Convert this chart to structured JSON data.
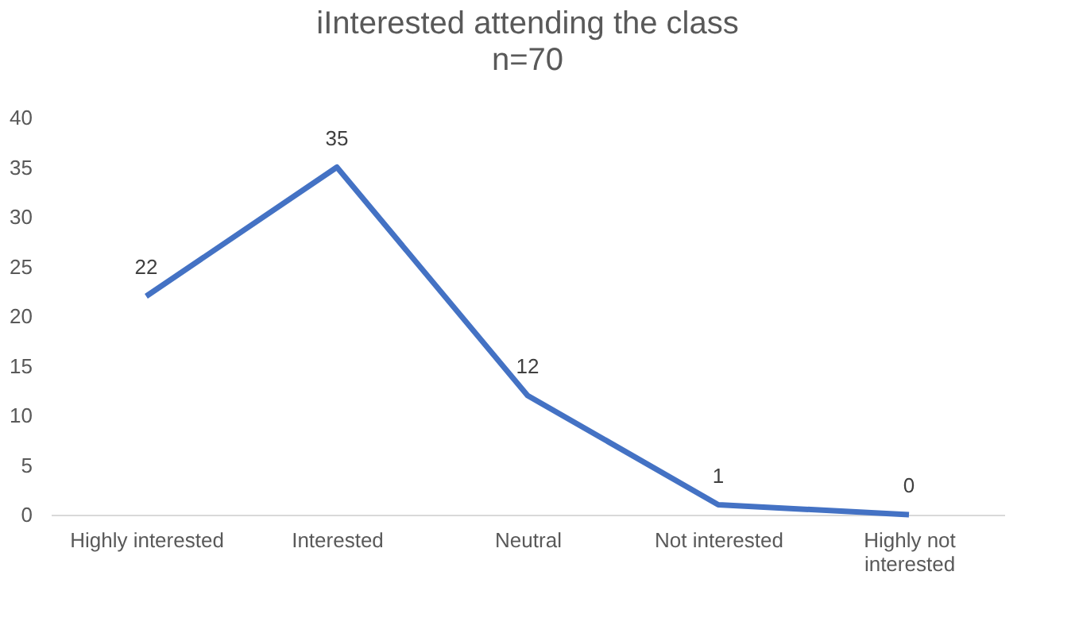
{
  "chart_data": {
    "type": "line",
    "title": "iInterested attending the class",
    "subtitle": "n=70",
    "categories": [
      "Highly interested",
      "Interested",
      "Neutral",
      "Not interested",
      "Highly not interested"
    ],
    "series": [
      {
        "color": "#4472c4",
        "values": [
          22,
          35,
          12,
          1,
          0
        ]
      }
    ],
    "ylim": [
      0,
      40
    ],
    "yticks": [
      0,
      5,
      10,
      15,
      20,
      25,
      30,
      35,
      40
    ],
    "data_labels": true,
    "grid": false,
    "marker": "none",
    "line_style": "solid"
  }
}
